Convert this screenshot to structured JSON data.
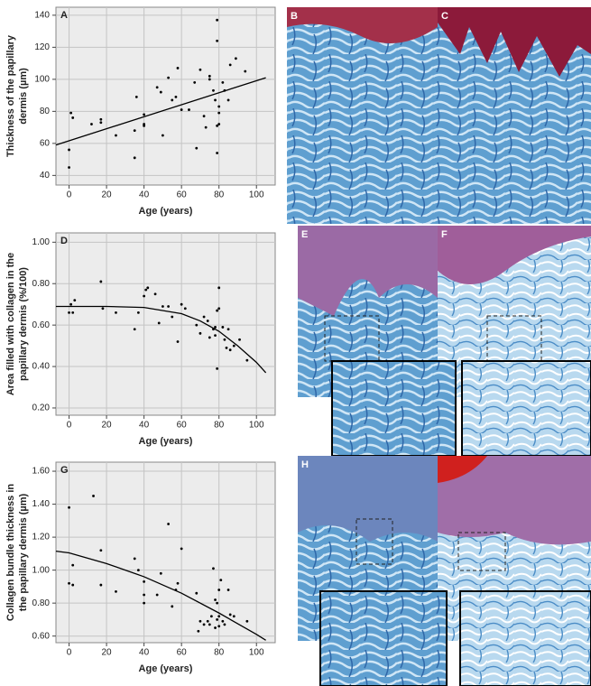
{
  "chart_data": [
    {
      "type": "scatter",
      "panel_label": "A",
      "xlabel": "Age (years)",
      "ylabel": [
        "Thickness of the papillary",
        "dermis (µm)"
      ],
      "xlim": [
        -7,
        110
      ],
      "xticks": [
        0,
        20,
        40,
        60,
        80,
        100
      ],
      "ylim": [
        34,
        145
      ],
      "yticks": [
        40,
        60,
        80,
        100,
        120,
        140
      ],
      "grid": true,
      "background": "#ececec",
      "series": [
        {
          "color": "#000000",
          "mode": "points",
          "x": [
            0,
            0,
            1,
            2,
            12,
            17,
            17,
            25,
            35,
            35,
            36,
            40,
            40,
            40,
            47,
            49,
            50,
            53,
            55,
            57,
            58,
            60,
            64,
            67,
            68,
            70,
            72,
            73,
            75,
            75,
            77,
            78,
            79,
            79,
            79,
            80,
            80,
            79,
            80,
            82,
            83,
            85,
            86,
            89,
            94
          ],
          "values": [
            45,
            56,
            79,
            76,
            72,
            75,
            73,
            65,
            51,
            68,
            89,
            78,
            72,
            71,
            95,
            92,
            65,
            101,
            87,
            89,
            107,
            81,
            81,
            98,
            57,
            106,
            77,
            70,
            102,
            100,
            93,
            87,
            137,
            124,
            71,
            79,
            72,
            54,
            83,
            98,
            93,
            87,
            109,
            113,
            105
          ]
        },
        {
          "color": "#000000",
          "mode": "line",
          "x": [
            -7,
            105
          ],
          "values": [
            59,
            101
          ]
        }
      ]
    },
    {
      "type": "scatter",
      "panel_label": "D",
      "xlabel": "Age (years)",
      "ylabel": [
        "Area filled with collagen in the",
        "papillary dermis (%/100)"
      ],
      "xlim": [
        -7,
        110
      ],
      "xticks": [
        0,
        20,
        40,
        60,
        80,
        100
      ],
      "ylim": [
        0.165,
        1.045
      ],
      "yticks": [
        {
          "value": 0.2,
          "label": "0.20"
        },
        {
          "value": 0.4,
          "label": "0.40"
        },
        {
          "value": 0.6,
          "label": "0.60"
        },
        {
          "value": 0.8,
          "label": "0.80"
        },
        {
          "value": 1.0,
          "label": "1.00"
        }
      ],
      "grid": true,
      "background": "#ececec",
      "series": [
        {
          "color": "#000000",
          "mode": "points",
          "x": [
            0,
            1,
            2,
            3,
            17,
            18,
            25,
            35,
            37,
            40,
            41,
            42,
            46,
            48,
            50,
            53,
            55,
            58,
            60,
            62,
            68,
            70,
            72,
            74,
            75,
            77,
            78,
            78,
            79,
            79,
            80,
            80,
            82,
            83,
            84,
            85,
            86,
            88,
            91,
            95
          ],
          "values": [
            0.66,
            0.7,
            0.66,
            0.72,
            0.81,
            0.68,
            0.66,
            0.58,
            0.66,
            0.74,
            0.77,
            0.78,
            0.75,
            0.61,
            0.69,
            0.69,
            0.64,
            0.52,
            0.7,
            0.68,
            0.6,
            0.56,
            0.64,
            0.62,
            0.54,
            0.58,
            0.55,
            0.59,
            0.67,
            0.39,
            0.78,
            0.68,
            0.59,
            0.53,
            0.49,
            0.58,
            0.48,
            0.5,
            0.53,
            0.43
          ]
        },
        {
          "color": "#000000",
          "mode": "line",
          "x": [
            -7,
            20,
            40,
            60,
            70,
            80,
            90,
            100,
            105
          ],
          "values": [
            0.69,
            0.69,
            0.685,
            0.655,
            0.62,
            0.57,
            0.5,
            0.42,
            0.37
          ]
        }
      ]
    },
    {
      "type": "scatter",
      "panel_label": "G",
      "xlabel": "Age (years)",
      "ylabel": [
        "Collagen bundle thickness in",
        "the papillary dermis (µm)"
      ],
      "xlim": [
        -7,
        110
      ],
      "xticks": [
        0,
        20,
        40,
        60,
        80,
        100
      ],
      "ylim": [
        0.56,
        1.655
      ],
      "yticks": [
        {
          "value": 0.6,
          "label": "0.60"
        },
        {
          "value": 0.8,
          "label": "0.80"
        },
        {
          "value": 1.0,
          "label": "1.00"
        },
        {
          "value": 1.2,
          "label": "1.20"
        },
        {
          "value": 1.4,
          "label": "1.40"
        },
        {
          "value": 1.6,
          "label": "1.60"
        }
      ],
      "grid": true,
      "background": "#ececec",
      "series": [
        {
          "color": "#000000",
          "mode": "points",
          "x": [
            0,
            0,
            2,
            2,
            13,
            17,
            17,
            25,
            35,
            37,
            40,
            40,
            40,
            47,
            49,
            53,
            55,
            57,
            58,
            60,
            68,
            69,
            70,
            72,
            74,
            75,
            76,
            77,
            78,
            78,
            79,
            79,
            80,
            80,
            80,
            81,
            82,
            83,
            85,
            86,
            88,
            95
          ],
          "values": [
            1.38,
            0.92,
            1.03,
            0.91,
            1.45,
            1.12,
            0.91,
            0.87,
            1.07,
            1.0,
            0.93,
            0.8,
            0.85,
            0.85,
            0.98,
            1.28,
            0.78,
            0.88,
            0.92,
            1.13,
            0.86,
            0.63,
            0.69,
            0.67,
            0.69,
            0.67,
            0.72,
            1.01,
            0.82,
            0.65,
            0.8,
            0.7,
            0.66,
            0.88,
            0.72,
            0.94,
            0.69,
            0.67,
            0.88,
            0.73,
            0.72,
            0.69
          ]
        },
        {
          "color": "#000000",
          "mode": "line",
          "x": [
            -7,
            0,
            20,
            40,
            60,
            80,
            100,
            105
          ],
          "values": [
            1.115,
            1.105,
            1.04,
            0.96,
            0.86,
            0.74,
            0.61,
            0.575
          ]
        }
      ]
    }
  ],
  "image_panels": [
    "B",
    "C",
    "E",
    "F",
    "H"
  ]
}
